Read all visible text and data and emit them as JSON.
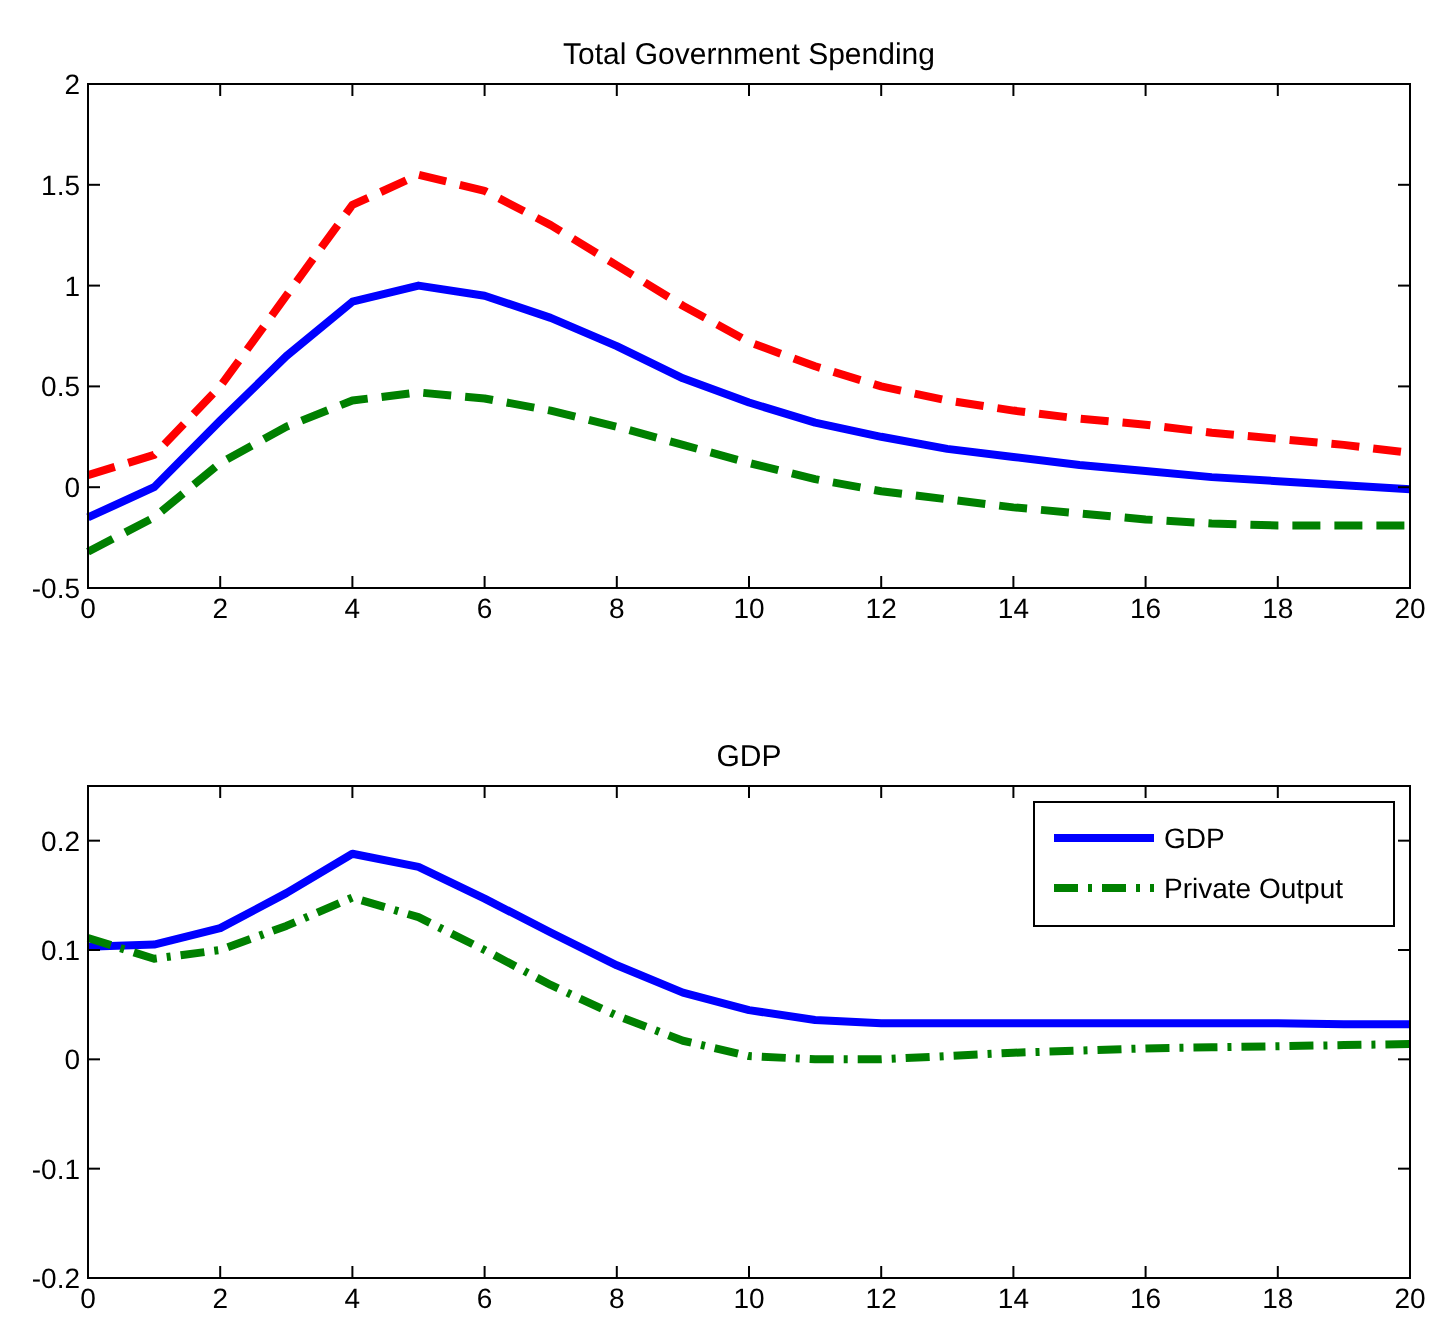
{
  "chart_data": [
    {
      "type": "line",
      "title": "Total Government Spending",
      "x": [
        0,
        1,
        2,
        3,
        4,
        5,
        6,
        7,
        8,
        9,
        10,
        11,
        12,
        13,
        14,
        15,
        16,
        17,
        18,
        19,
        20
      ],
      "xlim": [
        0,
        20
      ],
      "xticks": [
        0,
        2,
        4,
        6,
        8,
        10,
        12,
        14,
        16,
        18,
        20
      ],
      "ylim": [
        -0.5,
        2
      ],
      "yticks": [
        -0.5,
        0,
        0.5,
        1,
        1.5,
        2
      ],
      "grid": false,
      "legend": false,
      "series": [
        {
          "color": "#0000ff",
          "line_style": "solid",
          "values": [
            -0.15,
            0.0,
            0.33,
            0.65,
            0.92,
            1.0,
            0.95,
            0.84,
            0.7,
            0.54,
            0.42,
            0.32,
            0.25,
            0.19,
            0.15,
            0.11,
            0.08,
            0.05,
            0.03,
            0.01,
            -0.01
          ]
        },
        {
          "color": "#ff0000",
          "line_style": "dashed",
          "values": [
            0.06,
            0.16,
            0.5,
            0.95,
            1.4,
            1.55,
            1.47,
            1.3,
            1.1,
            0.9,
            0.72,
            0.6,
            0.5,
            0.43,
            0.38,
            0.34,
            0.31,
            0.27,
            0.24,
            0.21,
            0.17
          ]
        },
        {
          "color": "#008000",
          "line_style": "dashed",
          "values": [
            -0.32,
            -0.15,
            0.12,
            0.3,
            0.43,
            0.47,
            0.44,
            0.38,
            0.3,
            0.21,
            0.12,
            0.04,
            -0.02,
            -0.06,
            -0.1,
            -0.13,
            -0.16,
            -0.18,
            -0.19,
            -0.19,
            -0.19
          ]
        }
      ]
    },
    {
      "type": "line",
      "title": "GDP",
      "x": [
        0,
        1,
        2,
        3,
        4,
        5,
        6,
        7,
        8,
        9,
        10,
        11,
        12,
        13,
        14,
        15,
        16,
        17,
        18,
        19,
        20
      ],
      "xlim": [
        0,
        20
      ],
      "xticks": [
        0,
        2,
        4,
        6,
        8,
        10,
        12,
        14,
        16,
        18,
        20
      ],
      "ylim": [
        -0.2,
        0.25
      ],
      "yticks": [
        -0.2,
        -0.1,
        0,
        0.1,
        0.2
      ],
      "grid": false,
      "legend": "top right",
      "series": [
        {
          "name": "GDP",
          "color": "#0000ff",
          "line_style": "solid",
          "values": [
            0.103,
            0.105,
            0.12,
            0.152,
            0.188,
            0.176,
            0.147,
            0.116,
            0.086,
            0.061,
            0.045,
            0.036,
            0.033,
            0.033,
            0.033,
            0.033,
            0.033,
            0.033,
            0.033,
            0.032,
            0.032
          ]
        },
        {
          "name": "Private Output",
          "color": "#008000",
          "line_style": "dashdot",
          "values": [
            0.111,
            0.092,
            0.1,
            0.122,
            0.148,
            0.13,
            0.1,
            0.068,
            0.04,
            0.017,
            0.003,
            0,
            0,
            0.003,
            0.006,
            0.008,
            0.01,
            0.011,
            0.012,
            0.013,
            0.014
          ]
        }
      ]
    }
  ]
}
